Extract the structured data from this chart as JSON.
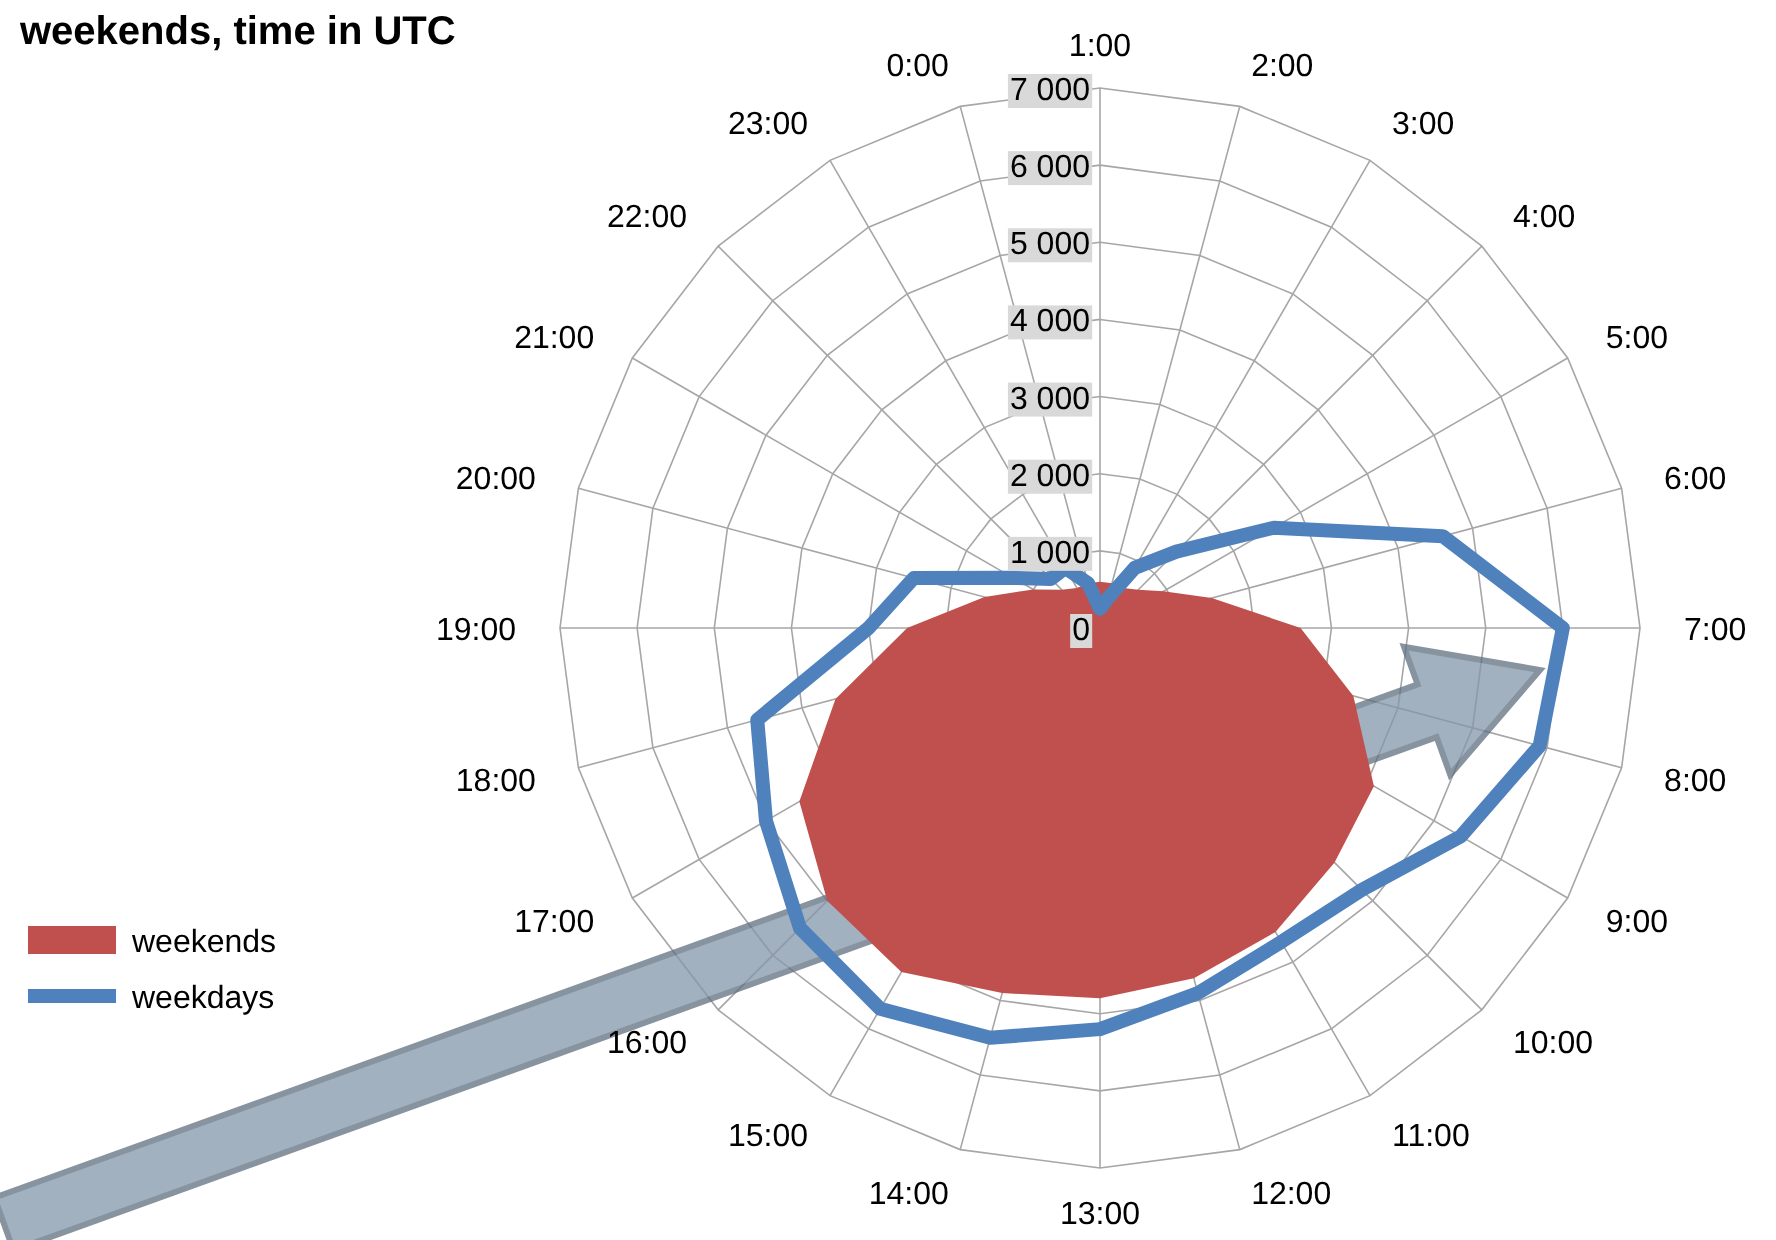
{
  "chart_data": {
    "type": "radar",
    "title": "weekends, time in UTC",
    "categories": [
      "1:00",
      "2:00",
      "3:00",
      "4:00",
      "5:00",
      "6:00",
      "7:00",
      "8:00",
      "9:00",
      "10:00",
      "11:00",
      "12:00",
      "13:00",
      "14:00",
      "15:00",
      "16:00",
      "17:00",
      "18:00",
      "19:00",
      "20:00",
      "21:00",
      "22:00",
      "23:00",
      "0:00"
    ],
    "series": [
      {
        "name": "weekends",
        "type": "area",
        "color": "#c0504d",
        "values": [
          600,
          600,
          600,
          700,
          950,
          1500,
          2600,
          3400,
          4100,
          4300,
          4550,
          4700,
          4800,
          4900,
          5150,
          5000,
          4500,
          3550,
          2500,
          1550,
          1000,
          700,
          600,
          600
        ]
      },
      {
        "name": "weekdays",
        "color": "#4f81bd",
        "values": [
          250,
          400,
          900,
          1400,
          2600,
          4600,
          6000,
          5900,
          5400,
          4800,
          4700,
          4900,
          5200,
          5500,
          5700,
          5500,
          5000,
          4600,
          3000,
          2500,
          1300,
          900,
          900,
          600
        ]
      }
    ],
    "ylim": [
      0,
      7000
    ],
    "yticks": [
      0,
      {
        "value": 1000,
        "label": "1 000"
      },
      {
        "value": 2000,
        "label": "2 000"
      },
      {
        "value": 3000,
        "label": "3 000"
      },
      {
        "value": 4000,
        "label": "4 000"
      },
      {
        "value": 5000,
        "label": "5 000"
      },
      {
        "value": 6000,
        "label": "6 000"
      },
      {
        "value": 7000,
        "label": "7 000"
      }
    ],
    "grid": true,
    "legend": "bottom left"
  }
}
